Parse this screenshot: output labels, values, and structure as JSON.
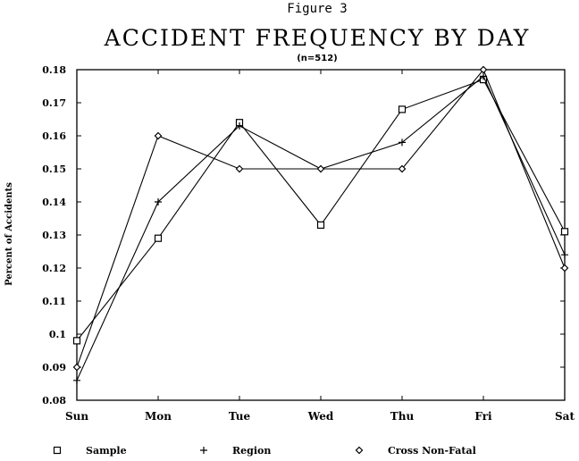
{
  "figure_label": "Figure 3",
  "chart_data": {
    "type": "line",
    "title": "ACCIDENT FREQUENCY BY DAY",
    "subtitle": "(n=512)",
    "xlabel": "",
    "ylabel": "Percent of Accidents",
    "categories": [
      "Sun",
      "Mon",
      "Tue",
      "Wed",
      "Thu",
      "Fri",
      "Sat"
    ],
    "ylim": [
      0.08,
      0.18
    ],
    "yticks": [
      "0.08",
      "0.09",
      "0.1",
      "0.11",
      "0.12",
      "0.13",
      "0.14",
      "0.15",
      "0.16",
      "0.17",
      "0.18"
    ],
    "grid": false,
    "legend_position": "bottom",
    "series": [
      {
        "name": "Sample",
        "marker": "square",
        "values": [
          0.098,
          0.129,
          0.164,
          0.133,
          0.168,
          0.177,
          0.131
        ]
      },
      {
        "name": "Region",
        "marker": "plus",
        "values": [
          0.086,
          0.14,
          0.163,
          0.15,
          0.158,
          0.178,
          0.124
        ]
      },
      {
        "name": "Cross Non-Fatal",
        "marker": "diamond",
        "values": [
          0.09,
          0.16,
          0.15,
          0.15,
          0.15,
          0.18,
          0.12
        ]
      }
    ]
  }
}
